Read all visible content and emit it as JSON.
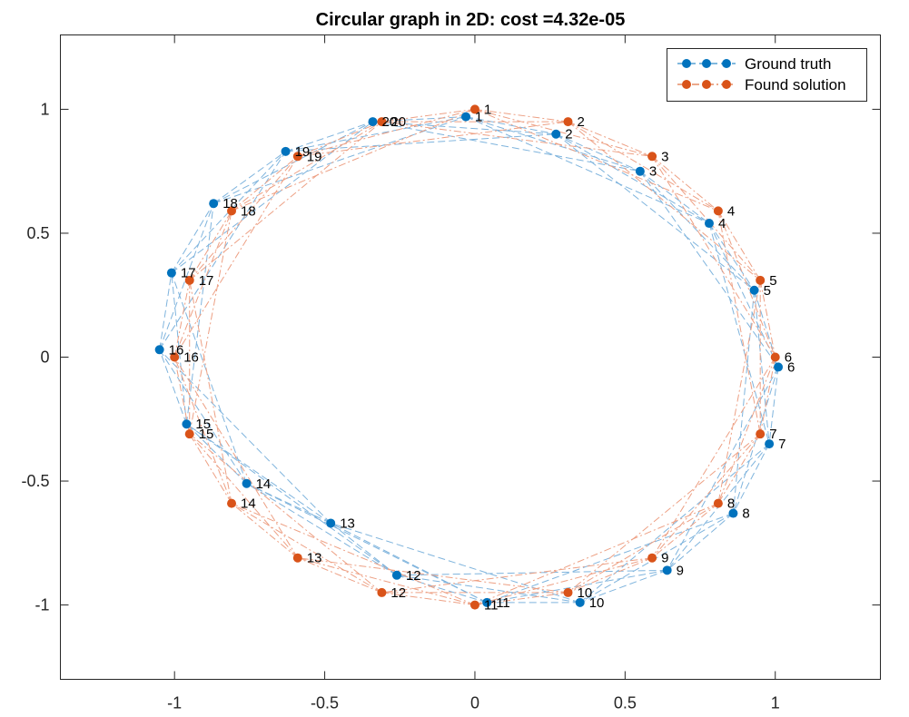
{
  "chart_data": {
    "type": "scatter",
    "title": "Circular graph in 2D: cost =4.32e-05",
    "xlim": [
      -1.38,
      1.35
    ],
    "ylim": [
      -1.3,
      1.3
    ],
    "xticks": [
      -1,
      -0.5,
      0,
      0.5,
      1
    ],
    "xtick_labels": [
      "-1",
      "-0.5",
      "0",
      "0.5",
      "1"
    ],
    "yticks": [
      -1,
      -0.5,
      0,
      0.5,
      1
    ],
    "ytick_labels": [
      "-1",
      "-0.5",
      "0",
      "0.5",
      "1"
    ],
    "grid": false,
    "legend_position": "top-right",
    "edge_hops": [
      1,
      2,
      3
    ],
    "series": [
      {
        "name": "Ground truth",
        "color": "#0072BD",
        "line_style": "dashed",
        "marker": "circle",
        "points": [
          {
            "label": "1",
            "x": -0.03,
            "y": 0.97
          },
          {
            "label": "2",
            "x": 0.27,
            "y": 0.9
          },
          {
            "label": "3",
            "x": 0.55,
            "y": 0.75
          },
          {
            "label": "4",
            "x": 0.78,
            "y": 0.54
          },
          {
            "label": "5",
            "x": 0.93,
            "y": 0.27
          },
          {
            "label": "6",
            "x": 1.01,
            "y": -0.04
          },
          {
            "label": "7",
            "x": 0.98,
            "y": -0.35
          },
          {
            "label": "8",
            "x": 0.86,
            "y": -0.63
          },
          {
            "label": "9",
            "x": 0.64,
            "y": -0.86
          },
          {
            "label": "10",
            "x": 0.35,
            "y": -0.99
          },
          {
            "label": "11",
            "x": 0.04,
            "y": -0.99
          },
          {
            "label": "12",
            "x": -0.26,
            "y": -0.88
          },
          {
            "label": "13",
            "x": -0.48,
            "y": -0.67
          },
          {
            "label": "14",
            "x": -0.76,
            "y": -0.51
          },
          {
            "label": "15",
            "x": -0.96,
            "y": -0.27
          },
          {
            "label": "16",
            "x": -1.05,
            "y": 0.03
          },
          {
            "label": "17",
            "x": -1.01,
            "y": 0.34
          },
          {
            "label": "18",
            "x": -0.87,
            "y": 0.62
          },
          {
            "label": "19",
            "x": -0.63,
            "y": 0.83
          },
          {
            "label": "20",
            "x": -0.34,
            "y": 0.95
          }
        ]
      },
      {
        "name": "Found solution",
        "color": "#D95319",
        "line_style": "dashdot",
        "marker": "circle",
        "points": [
          {
            "label": "1",
            "x": 0.0,
            "y": 1.0
          },
          {
            "label": "2",
            "x": 0.31,
            "y": 0.95
          },
          {
            "label": "3",
            "x": 0.59,
            "y": 0.81
          },
          {
            "label": "4",
            "x": 0.81,
            "y": 0.59
          },
          {
            "label": "5",
            "x": 0.95,
            "y": 0.31
          },
          {
            "label": "6",
            "x": 1.0,
            "y": 0.0
          },
          {
            "label": "7",
            "x": 0.95,
            "y": -0.31
          },
          {
            "label": "8",
            "x": 0.81,
            "y": -0.59
          },
          {
            "label": "9",
            "x": 0.59,
            "y": -0.81
          },
          {
            "label": "10",
            "x": 0.31,
            "y": -0.95
          },
          {
            "label": "11",
            "x": 0.0,
            "y": -1.0
          },
          {
            "label": "12",
            "x": -0.31,
            "y": -0.95
          },
          {
            "label": "13",
            "x": -0.59,
            "y": -0.81
          },
          {
            "label": "14",
            "x": -0.81,
            "y": -0.59
          },
          {
            "label": "15",
            "x": -0.95,
            "y": -0.31
          },
          {
            "label": "16",
            "x": -1.0,
            "y": 0.0
          },
          {
            "label": "17",
            "x": -0.95,
            "y": 0.31
          },
          {
            "label": "18",
            "x": -0.81,
            "y": 0.59
          },
          {
            "label": "19",
            "x": -0.59,
            "y": 0.81
          },
          {
            "label": "20",
            "x": -0.31,
            "y": 0.95
          }
        ]
      }
    ]
  }
}
